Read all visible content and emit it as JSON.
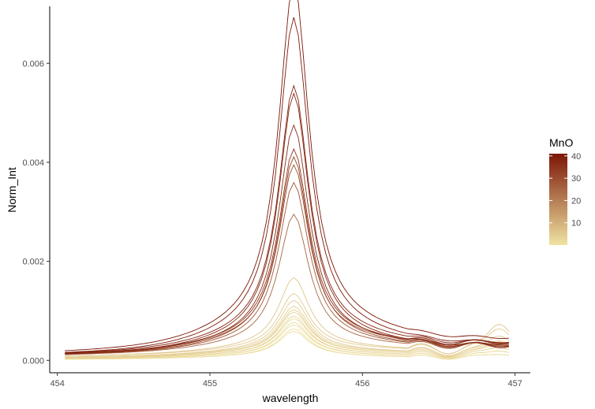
{
  "chart_data": {
    "type": "line",
    "title": "",
    "xlabel": "wavelength",
    "ylabel": "Norm_Int",
    "xlim": [
      453.95,
      457.1
    ],
    "ylim": [
      -0.00025,
      0.00715
    ],
    "x_ticks": [
      454,
      455,
      456,
      457
    ],
    "x_tick_labels": [
      "454",
      "455",
      "456",
      "457"
    ],
    "y_ticks": [
      0,
      0.002,
      0.004,
      0.006
    ],
    "y_tick_labels": [
      "0.000",
      "0.002",
      "0.004",
      "0.006"
    ],
    "grid": false,
    "legend": {
      "title": "MnO",
      "position": "right",
      "type": "colorbar",
      "range": [
        0,
        41
      ],
      "ticks": [
        10,
        20,
        30,
        40
      ],
      "tick_labels": [
        "10",
        "20",
        "30",
        "40"
      ],
      "color_low": "#f0e3a2",
      "color_high": "#7b1505"
    },
    "peak_center": 455.55,
    "series": [
      {
        "mno": 41,
        "base": 0.00015,
        "peak": 0.0069,
        "wing": 0.0022,
        "tail": 5e-05,
        "bump": 0.0
      },
      {
        "mno": 40,
        "base": 0.00012,
        "peak": 0.0063,
        "wing": 0.002,
        "tail": 5e-05,
        "bump": 0.0
      },
      {
        "mno": 38,
        "base": 0.00012,
        "peak": 0.005,
        "wing": 0.0016,
        "tail": 8e-05,
        "bump": 0.0
      },
      {
        "mno": 37,
        "base": 0.0001,
        "peak": 0.0049,
        "wing": 0.0015,
        "tail": 8e-05,
        "bump": 0.0
      },
      {
        "mno": 36,
        "base": 0.0001,
        "peak": 0.0043,
        "wing": 0.0013,
        "tail": 0.0001,
        "bump": 5e-05
      },
      {
        "mno": 34,
        "base": 0.00012,
        "peak": 0.0038,
        "wing": 0.0012,
        "tail": 0.0001,
        "bump": 5e-05
      },
      {
        "mno": 32,
        "base": 0.0001,
        "peak": 0.0037,
        "wing": 0.0011,
        "tail": 0.0001,
        "bump": 0.0
      },
      {
        "mno": 30,
        "base": 0.00012,
        "peak": 0.0035,
        "wing": 0.0011,
        "tail": 0.00012,
        "bump": 5e-05
      },
      {
        "mno": 28,
        "base": 0.0001,
        "peak": 0.0032,
        "wing": 0.001,
        "tail": 0.00012,
        "bump": 5e-05
      },
      {
        "mno": 25,
        "base": 0.0001,
        "peak": 0.0026,
        "wing": 0.0008,
        "tail": 0.00012,
        "bump": 8e-05
      },
      {
        "mno": 6,
        "base": 8e-05,
        "peak": 0.0014,
        "wing": 0.0006,
        "tail": 0.0002,
        "bump": 0.0006
      },
      {
        "mno": 5,
        "base": 8e-05,
        "peak": 0.0011,
        "wing": 0.0005,
        "tail": 0.00018,
        "bump": 0.0005
      },
      {
        "mno": 5,
        "base": 6e-05,
        "peak": 0.001,
        "wing": 0.0005,
        "tail": 0.00016,
        "bump": 0.0004
      },
      {
        "mno": 4,
        "base": 6e-05,
        "peak": 0.0009,
        "wing": 0.0004,
        "tail": 0.00015,
        "bump": 0.0003
      },
      {
        "mno": 4,
        "base": 5e-05,
        "peak": 0.00085,
        "wing": 0.0004,
        "tail": 0.00014,
        "bump": 0.0003
      },
      {
        "mno": 3,
        "base": 5e-05,
        "peak": 0.0008,
        "wing": 0.0004,
        "tail": 0.00013,
        "bump": 0.00025
      },
      {
        "mno": 3,
        "base": 4e-05,
        "peak": 0.00075,
        "wing": 0.00035,
        "tail": 0.00012,
        "bump": 0.0002
      },
      {
        "mno": 2,
        "base": 4e-05,
        "peak": 0.0007,
        "wing": 0.00035,
        "tail": 0.00012,
        "bump": 0.0002
      },
      {
        "mno": 2,
        "base": 3e-05,
        "peak": 0.00065,
        "wing": 0.0003,
        "tail": 0.0001,
        "bump": 0.00015
      },
      {
        "mno": 1,
        "base": 3e-05,
        "peak": 0.0006,
        "wing": 0.0003,
        "tail": 0.0001,
        "bump": 0.00015
      },
      {
        "mno": 1,
        "base": 2e-05,
        "peak": 0.00055,
        "wing": 0.00025,
        "tail": 8e-05,
        "bump": 0.0001
      },
      {
        "mno": 1,
        "base": 2e-05,
        "peak": 0.0005,
        "wing": 0.00025,
        "tail": 8e-05,
        "bump": 0.0001
      }
    ]
  }
}
